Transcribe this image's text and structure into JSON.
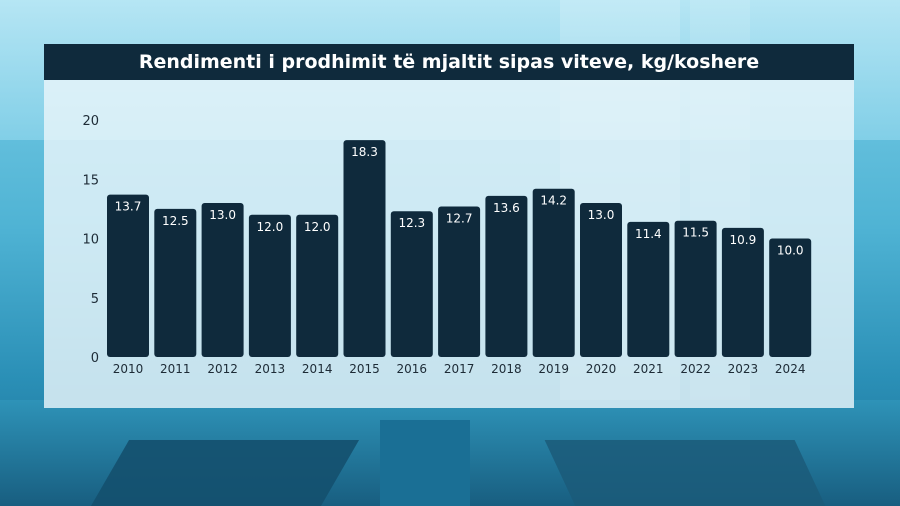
{
  "chart_data": {
    "type": "bar",
    "title": "Rendimenti i prodhimit të mjaltit sipas viteve, kg/koshere",
    "categories": [
      "2010",
      "2011",
      "2012",
      "2013",
      "2014",
      "2015",
      "2016",
      "2017",
      "2018",
      "2019",
      "2020",
      "2021",
      "2022",
      "2023",
      "2024"
    ],
    "values": [
      13.7,
      12.5,
      13.0,
      12.0,
      12.0,
      18.3,
      12.3,
      12.7,
      13.6,
      14.2,
      13.0,
      11.4,
      11.5,
      10.9,
      10.0
    ],
    "data_labels": [
      "13.7",
      "12.5",
      "13.0",
      "12.0",
      "12.0",
      "18.3",
      "12.3",
      "12.7",
      "13.6",
      "14.2",
      "13.0",
      "11.4",
      "11.5",
      "10.9",
      "10.0"
    ],
    "yticks": [
      "0",
      "5",
      "10",
      "15",
      "20"
    ],
    "ylim": [
      0,
      20
    ],
    "grid": false,
    "bar_color": "#0f2a3c",
    "label_color": "#ffffff"
  }
}
